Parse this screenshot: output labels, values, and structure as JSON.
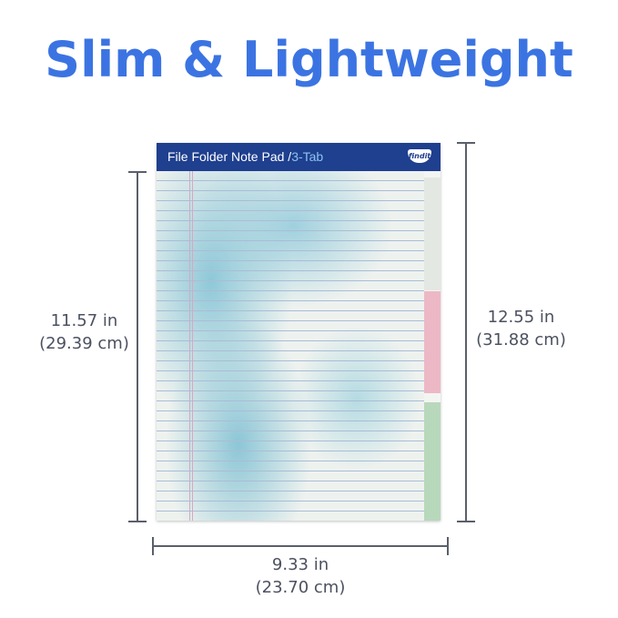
{
  "title": "Slim & Lightweight",
  "product": {
    "name": "File Folder Note Pad",
    "separator": "/",
    "variant": "3-Tab",
    "logo": "findit",
    "colors": {
      "header": "#1f3f8f",
      "tab_pink": "#edb8c6",
      "tab_green": "#b8d8bc",
      "watercolor": "#8ec8d8"
    }
  },
  "dimensions": {
    "height_inner": {
      "in": "11.57 in",
      "cm": "(29.39 cm)"
    },
    "height_total": {
      "in": "12.55 in",
      "cm": "(31.88 cm)"
    },
    "width": {
      "in": "9.33 in",
      "cm": "(23.70 cm)"
    }
  },
  "colors": {
    "title": "#3b74e2",
    "text": "#4c5160"
  }
}
